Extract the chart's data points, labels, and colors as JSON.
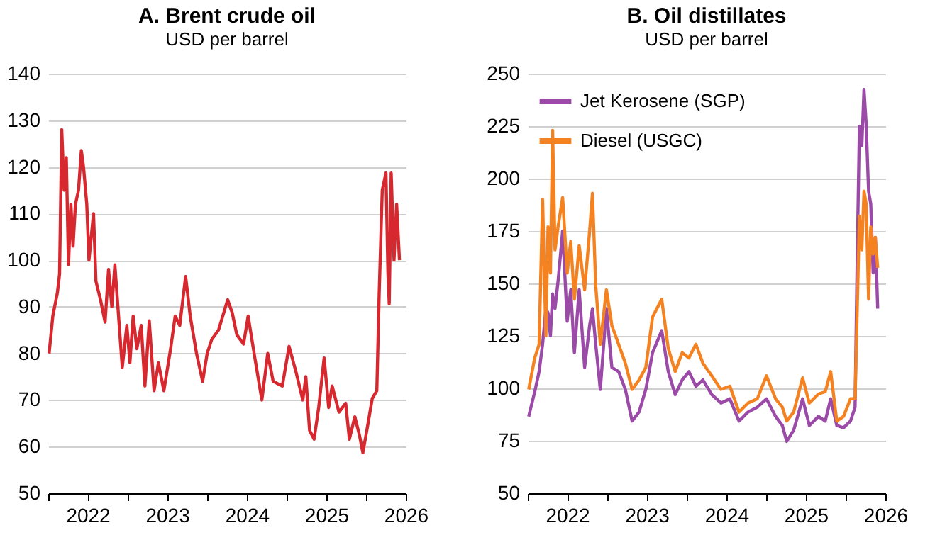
{
  "chart_data": [
    {
      "type": "line",
      "title": "A. Brent crude oil",
      "subtitle": "USD per barrel",
      "grid": "y",
      "xlim": [
        "2022-01-01",
        "2026-07-01"
      ],
      "xticks": [
        {
          "value": "2022-01-01",
          "label": null
        },
        {
          "value": "2022-07-01",
          "label": "2022"
        },
        {
          "value": "2023-01-01",
          "label": null
        },
        {
          "value": "2023-07-01",
          "label": "2023"
        },
        {
          "value": "2024-01-01",
          "label": null
        },
        {
          "value": "2024-07-01",
          "label": "2024"
        },
        {
          "value": "2025-01-01",
          "label": null
        },
        {
          "value": "2025-07-01",
          "label": "2025"
        },
        {
          "value": "2026-01-01",
          "label": null
        },
        {
          "value": "2026-07-01",
          "label": "2026"
        }
      ],
      "ylim": [
        50,
        140
      ],
      "yticks": [
        50,
        60,
        70,
        80,
        90,
        100,
        110,
        120,
        130,
        140
      ],
      "x": [
        "2022-01-05",
        "2022-01-22",
        "2022-02-12",
        "2022-02-22",
        "2022-03-04",
        "2022-03-15",
        "2022-03-25",
        "2022-04-04",
        "2022-04-15",
        "2022-04-25",
        "2022-05-06",
        "2022-05-20",
        "2022-06-02",
        "2022-06-12",
        "2022-06-27",
        "2022-07-07",
        "2022-07-28",
        "2022-08-08",
        "2022-08-29",
        "2022-09-19",
        "2022-10-05",
        "2022-10-20",
        "2022-11-03",
        "2022-11-20",
        "2022-12-07",
        "2022-12-28",
        "2023-01-11",
        "2023-01-26",
        "2023-02-12",
        "2023-03-04",
        "2023-03-21",
        "2023-04-10",
        "2023-05-02",
        "2023-05-22",
        "2023-06-16",
        "2023-07-17",
        "2023-08-07",
        "2023-08-28",
        "2023-09-24",
        "2023-10-15",
        "2023-11-13",
        "2023-12-11",
        "2024-01-01",
        "2024-01-22",
        "2024-02-22",
        "2024-04-04",
        "2024-04-25",
        "2024-05-16",
        "2024-06-16",
        "2024-07-07",
        "2024-08-07",
        "2024-09-08",
        "2024-10-05",
        "2024-10-30",
        "2024-12-11",
        "2025-01-11",
        "2025-02-12",
        "2025-03-15",
        "2025-03-29",
        "2025-04-15",
        "2025-05-06",
        "2025-05-27",
        "2025-06-21",
        "2025-07-12",
        "2025-07-28",
        "2025-08-28",
        "2025-09-28",
        "2025-10-15",
        "2025-11-09",
        "2025-11-30",
        "2025-12-16",
        "2026-01-07",
        "2026-01-28",
        "2026-02-18",
        "2026-03-01",
        "2026-03-15",
        "2026-04-01",
        "2026-04-10",
        "2026-04-16",
        "2026-04-25",
        "2026-05-08",
        "2026-05-20",
        "2026-06-02"
      ],
      "series": [
        {
          "color": "#d7282f",
          "values": [
            80,
            88,
            93,
            97,
            128,
            115,
            122,
            99,
            112,
            103,
            112,
            115,
            123.5,
            120,
            112,
            100,
            110,
            95.5,
            91.5,
            86.7,
            98,
            90,
            99,
            88,
            77,
            86,
            78,
            88,
            81,
            86,
            73,
            87,
            72,
            78,
            72,
            81,
            88,
            86,
            96.5,
            88,
            80,
            74,
            80,
            83,
            85,
            91.5,
            88.7,
            84,
            82,
            88,
            79,
            70,
            80,
            74,
            73,
            81.5,
            76,
            70,
            75,
            63.5,
            61.6,
            68.4,
            79,
            68.4,
            73,
            67.4,
            69.3,
            61.6,
            66.4,
            62.5,
            58.7,
            64.5,
            70.3,
            72,
            93,
            115,
            118.7,
            97.4,
            90.6,
            118.7,
            100,
            112,
            100
          ]
        }
      ]
    },
    {
      "type": "line",
      "title": "B. Oil distillates",
      "subtitle": "USD per barrel",
      "grid": "y",
      "legend": "top left",
      "xlim": [
        "2022-01-01",
        "2026-07-01"
      ],
      "xticks": [
        {
          "value": "2022-01-01",
          "label": null
        },
        {
          "value": "2022-07-01",
          "label": "2022"
        },
        {
          "value": "2023-01-01",
          "label": null
        },
        {
          "value": "2023-07-01",
          "label": "2023"
        },
        {
          "value": "2024-01-01",
          "label": null
        },
        {
          "value": "2024-07-01",
          "label": "2024"
        },
        {
          "value": "2025-01-01",
          "label": null
        },
        {
          "value": "2025-07-01",
          "label": "2025"
        },
        {
          "value": "2026-01-01",
          "label": null
        },
        {
          "value": "2026-07-01",
          "label": "2026"
        }
      ],
      "ylim": [
        50,
        250
      ],
      "yticks": [
        50,
        75,
        100,
        125,
        150,
        175,
        200,
        225,
        250
      ],
      "x": [
        "2022-01-05",
        "2022-02-02",
        "2022-02-22",
        "2022-03-10",
        "2022-03-25",
        "2022-04-04",
        "2022-04-15",
        "2022-04-25",
        "2022-05-06",
        "2022-05-20",
        "2022-06-10",
        "2022-07-01",
        "2022-07-17",
        "2022-08-03",
        "2022-08-25",
        "2022-09-19",
        "2022-10-12",
        "2022-10-25",
        "2022-11-09",
        "2022-11-30",
        "2022-12-28",
        "2023-01-22",
        "2023-02-22",
        "2023-03-25",
        "2023-04-25",
        "2023-05-27",
        "2023-06-27",
        "2023-07-28",
        "2023-09-08",
        "2023-10-08",
        "2023-11-09",
        "2023-12-11",
        "2024-01-11",
        "2024-02-12",
        "2024-03-15",
        "2024-04-25",
        "2024-06-06",
        "2024-07-17",
        "2024-08-28",
        "2024-10-08",
        "2024-11-20",
        "2025-01-01",
        "2025-02-12",
        "2025-03-15",
        "2025-04-04",
        "2025-05-06",
        "2025-06-16",
        "2025-07-17",
        "2025-08-28",
        "2025-09-28",
        "2025-10-23",
        "2025-11-20",
        "2025-12-21",
        "2026-01-22",
        "2026-02-12",
        "2026-02-22",
        "2026-03-04",
        "2026-03-15",
        "2026-03-25",
        "2026-04-04",
        "2026-04-15",
        "2026-04-25",
        "2026-05-06",
        "2026-05-16",
        "2026-05-27"
      ],
      "series": [
        {
          "name": "Jet Kerosene (SGP)",
          "color": "#9b4aa8",
          "values": [
            86.6,
            98.4,
            108,
            121,
            138,
            136,
            125,
            145,
            138,
            151,
            175,
            132,
            147,
            117,
            147,
            110,
            130,
            138,
            121,
            99.5,
            138,
            110,
            108,
            99.5,
            84.4,
            88.7,
            99.5,
            117,
            127.5,
            108,
            97,
            104,
            108,
            101,
            104,
            97,
            93,
            95,
            84.4,
            88.7,
            91,
            95,
            86.6,
            82.3,
            74.7,
            80,
            95,
            82.3,
            86.6,
            84.4,
            95,
            82.3,
            81.2,
            84.4,
            91,
            164,
            225,
            215.6,
            242.5,
            226,
            194,
            188,
            155,
            172,
            138
          ]
        },
        {
          "name": "Diesel (USGC)",
          "color": "#f58220",
          "values": [
            99.5,
            114.5,
            121,
            190,
            125,
            177,
            155,
            223,
            166,
            177,
            191,
            155,
            170,
            142.5,
            168,
            147,
            175,
            193,
            149,
            121,
            147,
            130,
            121,
            112,
            99.5,
            104,
            110,
            134,
            142.5,
            119,
            108,
            117,
            114.5,
            121,
            112,
            106,
            99.5,
            101,
            88.7,
            93,
            95,
            106,
            95,
            91,
            84.4,
            88.7,
            105,
            93,
            97.3,
            98.4,
            108,
            84.4,
            86.6,
            95,
            95,
            138,
            182,
            166,
            194,
            188,
            142.5,
            177,
            164,
            172,
            157.5
          ]
        }
      ]
    }
  ]
}
